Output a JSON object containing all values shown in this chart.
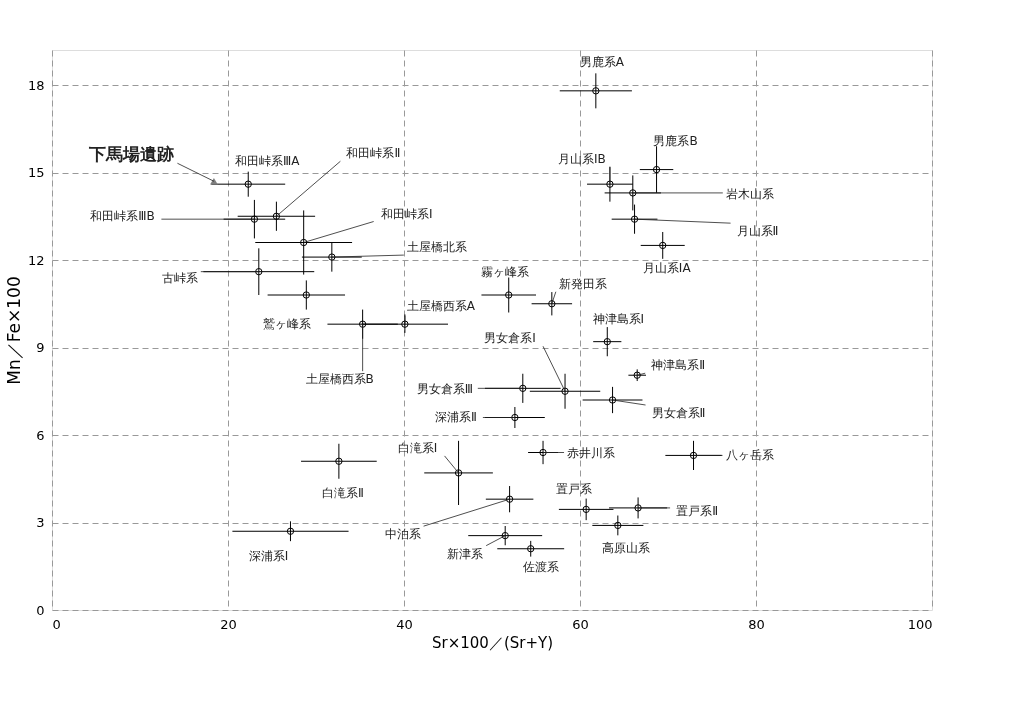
{
  "chart_data": {
    "type": "scatter",
    "xlabel": "Sr×100／(Sr+Y)",
    "ylabel": "Mn／Fe×100",
    "xlim": [
      0,
      100
    ],
    "xticks": [
      0,
      20,
      40,
      60,
      80,
      100
    ],
    "ylim": [
      0,
      19.2
    ],
    "yticks": [
      0,
      3,
      6,
      9,
      12,
      15,
      18
    ],
    "grid": true,
    "marker": "circle",
    "series": [
      {
        "color": "#000000",
        "x": [
          22.3,
          23.0,
          25.5,
          28.6,
          31.8,
          23.5,
          28.9,
          35.3,
          40.1,
          61.8,
          68.7,
          63.4,
          66.0,
          66.2,
          69.4,
          51.9,
          56.8,
          63.1,
          66.5,
          53.5,
          58.3,
          63.7,
          52.6,
          55.8,
          72.9,
          32.6,
          46.2,
          52.0,
          60.7,
          66.6,
          64.3,
          51.5,
          54.4,
          27.1
        ],
        "values": [
          14.6,
          13.4,
          13.5,
          12.6,
          12.1,
          11.6,
          10.8,
          9.8,
          9.8,
          17.8,
          15.1,
          14.6,
          14.3,
          13.4,
          12.5,
          10.8,
          10.5,
          9.2,
          8.05,
          7.6,
          7.5,
          7.2,
          6.6,
          5.4,
          5.3,
          5.1,
          4.7,
          3.8,
          3.45,
          3.5,
          2.9,
          2.55,
          2.1,
          2.7
        ],
        "xerrors": [
          4.2,
          3.5,
          4.4,
          5.5,
          3.4,
          6.3,
          4.4,
          4.0,
          4.9,
          4.1,
          1.9,
          2.6,
          3.2,
          2.6,
          2.5,
          3.1,
          2.3,
          1.6,
          1.0,
          4.3,
          4.0,
          3.4,
          3.4,
          1.7,
          3.2,
          4.3,
          3.9,
          2.7,
          3.1,
          3.3,
          2.9,
          4.2,
          3.8,
          6.6
        ],
        "errors": [
          0.43,
          0.66,
          0.5,
          1.1,
          0.5,
          0.8,
          0.5,
          0.5,
          0.3,
          0.6,
          0.8,
          0.6,
          0.6,
          0.5,
          0.46,
          0.6,
          0.4,
          0.5,
          0.2,
          0.5,
          0.6,
          0.45,
          0.36,
          0.4,
          0.5,
          0.6,
          1.1,
          0.45,
          0.37,
          0.36,
          0.34,
          0.33,
          0.27,
          0.34
        ]
      },
      {
        "color": "#7f7f7f",
        "marker": "triangle",
        "x": [
          18.4
        ],
        "values": [
          14.7
        ]
      }
    ],
    "annotations": [
      {
        "text": "和田峠系ⅢA",
        "x": 22.3,
        "y": 14.6
      },
      {
        "text": "和田峠系ⅢB",
        "x": 23.0,
        "y": 13.4
      },
      {
        "text": "和田峠系Ⅱ",
        "x": 25.5,
        "y": 13.5
      },
      {
        "text": "和田峠系Ⅰ",
        "x": 28.6,
        "y": 12.6
      },
      {
        "text": "土屋橋北系",
        "x": 31.8,
        "y": 12.1
      },
      {
        "text": "古峠系",
        "x": 23.5,
        "y": 11.6
      },
      {
        "text": "鷲ヶ峰系",
        "x": 28.9,
        "y": 10.8
      },
      {
        "text": "土屋橋西系B",
        "x": 35.3,
        "y": 9.8
      },
      {
        "text": "土屋橋西系A",
        "x": 40.1,
        "y": 9.8
      },
      {
        "text": "男鹿系A",
        "x": 61.8,
        "y": 17.8
      },
      {
        "text": "男鹿系B",
        "x": 68.7,
        "y": 15.1
      },
      {
        "text": "月山系ⅠB",
        "x": 63.4,
        "y": 14.6
      },
      {
        "text": "岩木山系",
        "x": 66.0,
        "y": 14.3
      },
      {
        "text": "月山系Ⅱ",
        "x": 66.2,
        "y": 13.4
      },
      {
        "text": "月山系ⅠA",
        "x": 69.4,
        "y": 12.5
      },
      {
        "text": "霧ヶ峰系",
        "x": 51.9,
        "y": 10.8
      },
      {
        "text": "新発田系",
        "x": 56.8,
        "y": 10.5
      },
      {
        "text": "神津島系Ⅰ",
        "x": 63.1,
        "y": 9.2
      },
      {
        "text": "神津島系Ⅱ",
        "x": 66.5,
        "y": 8.05
      },
      {
        "text": "男女倉系Ⅰ",
        "x": 58.3,
        "y": 7.5
      },
      {
        "text": "男女倉系Ⅲ",
        "x": 53.5,
        "y": 7.6
      },
      {
        "text": "男女倉系Ⅱ",
        "x": 63.7,
        "y": 7.2
      },
      {
        "text": "深浦系Ⅱ",
        "x": 52.6,
        "y": 6.6
      },
      {
        "text": "赤井川系",
        "x": 55.8,
        "y": 5.4
      },
      {
        "text": "八ヶ岳系",
        "x": 72.9,
        "y": 5.3
      },
      {
        "text": "白滝系Ⅱ",
        "x": 32.6,
        "y": 5.1
      },
      {
        "text": "白滝系Ⅰ",
        "x": 46.2,
        "y": 4.7
      },
      {
        "text": "中泊系",
        "x": 52.0,
        "y": 3.8
      },
      {
        "text": "置戸系",
        "x": 60.7,
        "y": 3.45
      },
      {
        "text": "置戸系Ⅱ",
        "x": 66.6,
        "y": 3.5
      },
      {
        "text": "高原山系",
        "x": 64.3,
        "y": 2.9
      },
      {
        "text": "新津系",
        "x": 51.5,
        "y": 2.55
      },
      {
        "text": "佐渡系",
        "x": 54.4,
        "y": 2.1
      },
      {
        "text": "深浦系Ⅰ",
        "x": 27.1,
        "y": 2.7
      },
      {
        "text": "下馬場遺跡",
        "x": 18.4,
        "y": 14.7
      }
    ]
  }
}
